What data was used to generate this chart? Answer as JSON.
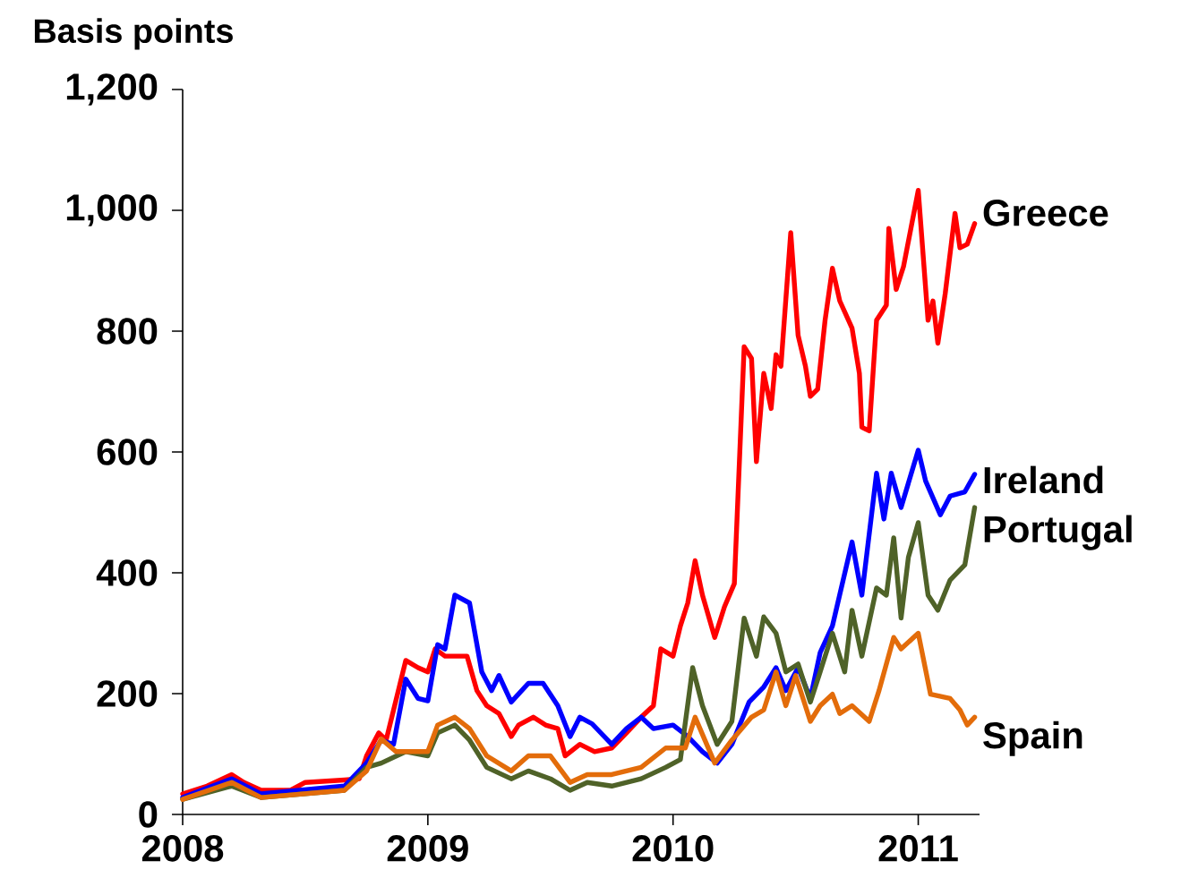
{
  "chart_data": {
    "type": "line",
    "ylabel": "Basis points",
    "xlim": [
      2008,
      2011.25
    ],
    "ylim": [
      0,
      1200
    ],
    "xticks": [
      2008,
      2009,
      2010,
      2011
    ],
    "yticks": [
      0,
      200,
      400,
      600,
      800,
      {
        "value": 1000,
        "label": "1,000"
      },
      {
        "value": 1200,
        "label": "1,200"
      }
    ],
    "series": [
      {
        "name": "Greece",
        "color": "#ff0000",
        "x": [
          2008.0,
          2008.1,
          2008.2,
          2008.25,
          2008.32,
          2008.44,
          2008.5,
          2008.66,
          2008.72,
          2008.75,
          2008.8,
          2008.83,
          2008.91,
          2008.96,
          2009.0,
          2009.03,
          2009.07,
          2009.12,
          2009.16,
          2009.2,
          2009.24,
          2009.29,
          2009.34,
          2009.37,
          2009.43,
          2009.48,
          2009.53,
          2009.56,
          2009.62,
          2009.68,
          2009.75,
          2009.81,
          2009.87,
          2009.92,
          2009.95,
          2010.0,
          2010.03,
          2010.06,
          2010.09,
          2010.12,
          2010.17,
          2010.21,
          2010.25,
          2010.29,
          2010.32,
          2010.34,
          2010.37,
          2010.4,
          2010.42,
          2010.44,
          2010.48,
          2010.51,
          2010.54,
          2010.56,
          2010.59,
          2010.62,
          2010.65,
          2010.68,
          2010.73,
          2010.76,
          2010.77,
          2010.8,
          2010.83,
          2010.87,
          2010.88,
          2010.91,
          2010.94,
          2011.0,
          2011.04,
          2011.06,
          2011.08,
          2011.11,
          2011.15,
          2011.17,
          2011.2,
          2011.23
        ],
        "values": [
          34,
          47,
          66,
          53,
          40,
          40,
          53,
          57,
          59,
          97,
          135,
          123,
          255,
          243,
          236,
          274,
          262,
          262,
          262,
          205,
          180,
          167,
          129,
          148,
          161,
          148,
          142,
          97,
          116,
          104,
          110,
          135,
          161,
          180,
          274,
          262,
          312,
          350,
          420,
          363,
          293,
          344,
          382,
          774,
          755,
          584,
          730,
          672,
          761,
          742,
          963,
          793,
          742,
          692,
          704,
          818,
          904,
          850,
          805,
          730,
          641,
          635,
          818,
          843,
          970,
          869,
          907,
          1033,
          818,
          850,
          780,
          862,
          995,
          938,
          944,
          978
        ]
      },
      {
        "name": "Ireland",
        "color": "#0000ff",
        "x": [
          2008.0,
          2008.2,
          2008.32,
          2008.66,
          2008.75,
          2008.81,
          2008.86,
          2008.91,
          2008.96,
          2009.0,
          2009.04,
          2009.07,
          2009.11,
          2009.17,
          2009.22,
          2009.26,
          2009.29,
          2009.34,
          2009.41,
          2009.47,
          2009.53,
          2009.58,
          2009.62,
          2009.67,
          2009.75,
          2009.81,
          2009.87,
          2009.92,
          2010.0,
          2010.06,
          2010.12,
          2010.18,
          2010.24,
          2010.31,
          2010.37,
          2010.42,
          2010.46,
          2010.51,
          2010.56,
          2010.6,
          2010.65,
          2010.73,
          2010.77,
          2010.83,
          2010.86,
          2010.89,
          2010.93,
          2011.0,
          2011.03,
          2011.09,
          2011.13,
          2011.19,
          2011.23
        ],
        "values": [
          28,
          59,
          34,
          47,
          85,
          123,
          116,
          224,
          192,
          188,
          281,
          274,
          363,
          350,
          236,
          205,
          230,
          186,
          217,
          217,
          180,
          129,
          161,
          150,
          116,
          142,
          161,
          142,
          148,
          129,
          104,
          85,
          116,
          186,
          211,
          243,
          205,
          243,
          192,
          268,
          312,
          451,
          363,
          565,
          489,
          565,
          508,
          603,
          552,
          496,
          527,
          534,
          563
        ]
      },
      {
        "name": "Portugal",
        "color": "#4f6228",
        "x": [
          2008.0,
          2008.2,
          2008.32,
          2008.66,
          2008.75,
          2008.81,
          2008.91,
          2009.0,
          2009.04,
          2009.11,
          2009.17,
          2009.24,
          2009.34,
          2009.41,
          2009.5,
          2009.58,
          2009.65,
          2009.75,
          2009.87,
          2009.97,
          2010.03,
          2010.08,
          2010.12,
          2010.18,
          2010.24,
          2010.29,
          2010.34,
          2010.37,
          2010.42,
          2010.46,
          2010.51,
          2010.56,
          2010.6,
          2010.65,
          2010.7,
          2010.73,
          2010.77,
          2010.83,
          2010.87,
          2010.9,
          2010.93,
          2010.96,
          2011.0,
          2011.04,
          2011.08,
          2011.13,
          2011.19,
          2011.23
        ],
        "values": [
          25,
          47,
          28,
          40,
          78,
          85,
          104,
          97,
          135,
          148,
          123,
          78,
          59,
          72,
          59,
          40,
          53,
          47,
          59,
          78,
          91,
          243,
          180,
          116,
          154,
          325,
          262,
          327,
          300,
          236,
          249,
          186,
          236,
          300,
          236,
          338,
          262,
          375,
          363,
          458,
          325,
          426,
          483,
          363,
          338,
          388,
          413,
          508
        ]
      },
      {
        "name": "Spain",
        "color": "#e36c0a",
        "x": [
          2008.0,
          2008.2,
          2008.32,
          2008.66,
          2008.75,
          2008.81,
          2008.87,
          2009.0,
          2009.04,
          2009.11,
          2009.17,
          2009.24,
          2009.34,
          2009.41,
          2009.5,
          2009.58,
          2009.65,
          2009.75,
          2009.87,
          2009.97,
          2010.05,
          2010.09,
          2010.17,
          2010.24,
          2010.32,
          2010.37,
          2010.42,
          2010.46,
          2010.5,
          2010.56,
          2010.6,
          2010.65,
          2010.68,
          2010.73,
          2010.8,
          2010.84,
          2010.9,
          2010.93,
          2011.0,
          2011.05,
          2011.13,
          2011.17,
          2011.2,
          2011.23
        ],
        "values": [
          25,
          53,
          28,
          40,
          72,
          125,
          104,
          104,
          148,
          161,
          142,
          97,
          72,
          97,
          97,
          53,
          66,
          66,
          78,
          110,
          110,
          161,
          85,
          123,
          161,
          173,
          236,
          180,
          230,
          154,
          180,
          199,
          167,
          180,
          154,
          205,
          293,
          274,
          300,
          199,
          192,
          173,
          148,
          161
        ]
      }
    ]
  }
}
